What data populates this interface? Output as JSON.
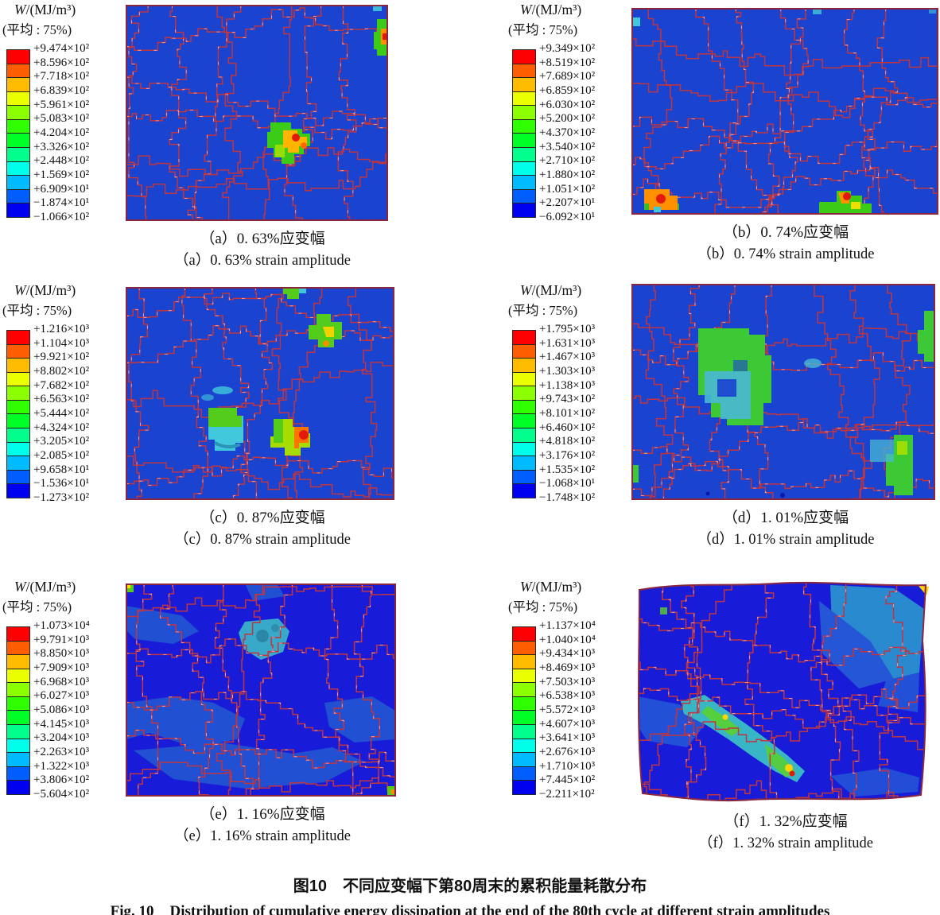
{
  "figure": {
    "caption_zh_label": "图10",
    "caption_zh_text": "不同应变幅下第80周末的累积能量耗散分布",
    "caption_en_label": "Fig. 10",
    "caption_en_text": "Distribution of cumulative energy dissipation at the end of the 80th cycle at different strain amplitudes"
  },
  "legend_common": {
    "title_var": "W",
    "title_rest": "/(MJ/m³)",
    "avg": "(平均 : 75%)"
  },
  "colors": {
    "bands": [
      "#ff0000",
      "#ff5e00",
      "#ffbb00",
      "#eaff00",
      "#8cff00",
      "#2fff00",
      "#00ff26",
      "#00ff8c",
      "#00ffea",
      "#00bbff",
      "#005eff",
      "#0000f0"
    ],
    "field_blue": "#1a43cf",
    "field_dark": "#181cd8",
    "boundary": "#c03540",
    "boundary_hi": "#f0b7c0",
    "frame": "#8a2740"
  },
  "panels": [
    {
      "id": "a",
      "caption_zh": "（a）0. 63%应变幅",
      "caption_en": "（a）0. 63% strain amplitude",
      "legend_values": [
        "+9.474×10²",
        "+8.596×10²",
        "+7.718×10²",
        "+6.839×10²",
        "+5.961×10²",
        "+5.083×10²",
        "+4.204×10²",
        "+3.326×10²",
        "+2.448×10²",
        "+1.569×10²",
        "+6.909×10¹",
        "−1.874×10¹",
        "−1.066×10²"
      ]
    },
    {
      "id": "b",
      "caption_zh": "（b）0. 74%应变幅",
      "caption_en": "（b）0. 74% strain amplitude",
      "legend_values": [
        "+9.349×10²",
        "+8.519×10²",
        "+7.689×10²",
        "+6.859×10²",
        "+6.030×10²",
        "+5.200×10²",
        "+4.370×10²",
        "+3.540×10²",
        "+2.710×10²",
        "+1.880×10²",
        "+1.051×10²",
        "+2.207×10¹",
        "−6.092×10¹"
      ]
    },
    {
      "id": "c",
      "caption_zh": "（c）0. 87%应变幅",
      "caption_en": "（c）0. 87% strain amplitude",
      "legend_values": [
        "+1.216×10³",
        "+1.104×10³",
        "+9.921×10²",
        "+8.802×10²",
        "+7.682×10²",
        "+6.563×10²",
        "+5.444×10²",
        "+4.324×10²",
        "+3.205×10²",
        "+2.085×10²",
        "+9.658×10¹",
        "−1.536×10¹",
        "−1.273×10²"
      ]
    },
    {
      "id": "d",
      "caption_zh": "（d）1. 01%应变幅",
      "caption_en": "（d）1. 01% strain amplitude",
      "legend_values": [
        "+1.795×10³",
        "+1.631×10³",
        "+1.467×10³",
        "+1.303×10³",
        "+1.138×10³",
        "+9.743×10²",
        "+8.101×10²",
        "+6.460×10²",
        "+4.818×10²",
        "+3.176×10²",
        "+1.535×10²",
        "−1.068×10¹",
        "−1.748×10²"
      ]
    },
    {
      "id": "e",
      "caption_zh": "（e）1. 16%应变幅",
      "caption_en": "（e）1. 16% strain amplitude",
      "legend_values": [
        "+1.073×10⁴",
        "+9.791×10³",
        "+8.850×10³",
        "+7.909×10³",
        "+6.968×10³",
        "+6.027×10³",
        "+5.086×10³",
        "+4.145×10³",
        "+3.204×10³",
        "+2.263×10³",
        "+1.322×10³",
        "+3.806×10²",
        "−5.604×10²"
      ]
    },
    {
      "id": "f",
      "caption_zh": "（f）1. 32%应变幅",
      "caption_en": "（f）1. 32% strain amplitude",
      "legend_values": [
        "+1.137×10⁴",
        "+1.040×10⁴",
        "+9.434×10³",
        "+8.469×10³",
        "+7.503×10³",
        "+6.538×10³",
        "+5.572×10³",
        "+4.607×10³",
        "+3.641×10³",
        "+2.676×10³",
        "+1.710×10³",
        "+7.445×10²",
        "−2.211×10²"
      ]
    }
  ]
}
